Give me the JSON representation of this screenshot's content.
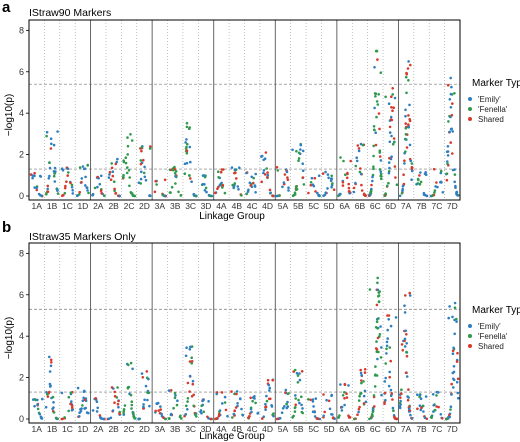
{
  "chart_data": [
    {
      "panel_letter": "a",
      "title": "IStraw90 Markers",
      "type": "scatter",
      "chart_subtype": "manhattan",
      "xlabel": "Linkage Group",
      "ylabel": "−log10(p)",
      "ylim": [
        0,
        8.5
      ],
      "y_ticks": [
        0,
        2,
        4,
        6,
        8
      ],
      "thresholds": [
        5.4,
        1.3
      ],
      "homoeologous_groups": [
        {
          "label": "1",
          "linkage_groups": [
            "1A",
            "1B",
            "1C",
            "1D"
          ]
        },
        {
          "label": "2",
          "linkage_groups": [
            "2A",
            "2B",
            "2C",
            "2D"
          ]
        },
        {
          "label": "3",
          "linkage_groups": [
            "3A",
            "3B",
            "3C",
            "3D"
          ]
        },
        {
          "label": "4",
          "linkage_groups": [
            "4A",
            "4B",
            "4C",
            "4D"
          ]
        },
        {
          "label": "5",
          "linkage_groups": [
            "5A",
            "5B",
            "5C",
            "5D"
          ]
        },
        {
          "label": "6",
          "linkage_groups": [
            "6A",
            "6B",
            "6C",
            "6D"
          ]
        },
        {
          "label": "7",
          "linkage_groups": [
            "7A",
            "7B",
            "7C",
            "7D"
          ]
        }
      ],
      "peak_max_by_group": {
        "1A": 1.1,
        "1B": 3.3,
        "1C": 1.4,
        "1D": 1.6,
        "2A": 1.0,
        "2B": 1.8,
        "2C": 3.0,
        "2D": 2.4,
        "3A": 0.8,
        "3B": 1.4,
        "3C": 3.6,
        "3D": 1.0,
        "4A": 1.3,
        "4B": 1.4,
        "4C": 1.2,
        "4D": 2.1,
        "5A": 1.4,
        "5B": 2.5,
        "5C": 1.0,
        "5D": 1.2,
        "6A": 1.9,
        "6B": 2.6,
        "6C": 7.0,
        "6D": 5.2,
        "7A": 6.5,
        "7B": 1.2,
        "7C": 1.3,
        "7D": 5.7
      },
      "legend": {
        "title": "Marker Type",
        "position": "right",
        "items": [
          {
            "label": "'Emily'",
            "color": "#2f7fc0"
          },
          {
            "label": "'Fenella'",
            "color": "#2e9a4b"
          },
          {
            "label": "Shared",
            "color": "#d73a2c"
          }
        ]
      }
    },
    {
      "panel_letter": "b",
      "title": "IStraw35 Markers Only",
      "type": "scatter",
      "chart_subtype": "manhattan",
      "xlabel": "Linkage Group",
      "ylabel": "−log10(p)",
      "ylim": [
        0,
        8.5
      ],
      "y_ticks": [
        0,
        2,
        4,
        6,
        8
      ],
      "thresholds": [
        5.3,
        1.3
      ],
      "homoeologous_groups": [
        {
          "label": "1",
          "linkage_groups": [
            "1A",
            "1B",
            "1C",
            "1D"
          ]
        },
        {
          "label": "2",
          "linkage_groups": [
            "2A",
            "2B",
            "2C",
            "2D"
          ]
        },
        {
          "label": "3",
          "linkage_groups": [
            "3A",
            "3B",
            "3C",
            "3D"
          ]
        },
        {
          "label": "4",
          "linkage_groups": [
            "4A",
            "4B",
            "4C",
            "4D"
          ]
        },
        {
          "label": "5",
          "linkage_groups": [
            "5A",
            "5B",
            "5C",
            "5D"
          ]
        },
        {
          "label": "6",
          "linkage_groups": [
            "6A",
            "6B",
            "6C",
            "6D"
          ]
        },
        {
          "label": "7",
          "linkage_groups": [
            "7A",
            "7B",
            "7C",
            "7D"
          ]
        }
      ],
      "peak_max_by_group": {
        "1A": 1.0,
        "1B": 3.0,
        "1C": 1.3,
        "1D": 1.5,
        "2A": 1.0,
        "2B": 1.7,
        "2C": 2.8,
        "2D": 2.3,
        "3A": 0.8,
        "3B": 1.4,
        "3C": 3.5,
        "3D": 1.0,
        "4A": 1.3,
        "4B": 1.4,
        "4C": 1.2,
        "4D": 2.0,
        "5A": 1.4,
        "5B": 2.4,
        "5C": 1.0,
        "5D": 1.2,
        "6A": 1.8,
        "6B": 2.5,
        "6C": 7.0,
        "6D": 5.0,
        "7A": 6.3,
        "7B": 1.2,
        "7C": 1.3,
        "7D": 5.6
      },
      "legend": {
        "title": "Marker Type",
        "position": "right",
        "items": [
          {
            "label": "'Emily'",
            "color": "#2f7fc0"
          },
          {
            "label": "'Fenella'",
            "color": "#2e9a4b"
          },
          {
            "label": "Shared",
            "color": "#d73a2c"
          }
        ]
      }
    }
  ],
  "colors": {
    "emily": "#2f7fc0",
    "fenella": "#2e9a4b",
    "shared": "#d73a2c",
    "panel_border": "#000000",
    "threshold_line": "#777777",
    "divider": "#555555"
  }
}
